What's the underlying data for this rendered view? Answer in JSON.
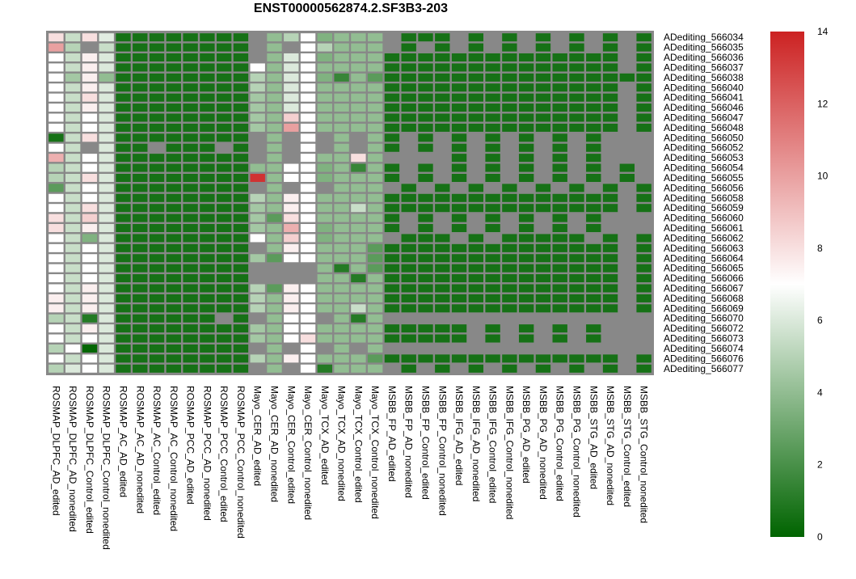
{
  "chart_data": {
    "type": "heatmap",
    "title": "ENST00000562874.2.SF3B3-203",
    "rows": [
      "ADediting_566034",
      "ADediting_566035",
      "ADediting_566036",
      "ADediting_566037",
      "ADediting_566038",
      "ADediting_566040",
      "ADediting_566041",
      "ADediting_566046",
      "ADediting_566047",
      "ADediting_566048",
      "ADediting_566050",
      "ADediting_566052",
      "ADediting_566053",
      "ADediting_566054",
      "ADediting_566055",
      "ADediting_566056",
      "ADediting_566058",
      "ADediting_566059",
      "ADediting_566060",
      "ADediting_566061",
      "ADediting_566062",
      "ADediting_566063",
      "ADediting_566064",
      "ADediting_566065",
      "ADediting_566066",
      "ADediting_566067",
      "ADediting_566068",
      "ADediting_566069",
      "ADediting_566070",
      "ADediting_566072",
      "ADediting_566073",
      "ADediting_566074",
      "ADediting_566076",
      "ADediting_566077"
    ],
    "columns": [
      "ROSMAP_DLPFC_AD_edited",
      "ROSMAP_DLPFC_AD_nonedited",
      "ROSMAP_DLPFC_Control_edited",
      "ROSMAP_DLPFC_Control_nonedited",
      "ROSMAP_AC_AD_edited",
      "ROSMAP_AC_AD_nonedited",
      "ROSMAP_AC_Control_edited",
      "ROSMAP_AC_Control_nonedited",
      "ROSMAP_PCC_AD_edited",
      "ROSMAP_PCC_AD_nonedited",
      "ROSMAP_PCC_Control_edited",
      "ROSMAP_PCC_Control_nonedited",
      "Mayo_CER_AD_edited",
      "Mayo_CER_AD_nonedited",
      "Mayo_CER_Control_edited",
      "Mayo_CER_Control_nonedited",
      "Mayo_TCX_AD_edited",
      "Mayo_TCX_AD_nonedited",
      "Mayo_TCX_Control_edited",
      "Mayo_TCX_Control_nonedited",
      "MSBB_FP_AD_edited",
      "MSBB_FP_AD_nonedited",
      "MSBB_FP_Control_edited",
      "MSBB_FP_Control_nonedited",
      "MSBB_IFG_AD_edited",
      "MSBB_IFG_AD_nonedited",
      "MSBB_IFG_Control_edited",
      "MSBB_IFG_Control_nonedited",
      "MSBB_PG_AD_edited",
      "MSBB_PG_AD_nonedited",
      "MSBB_PG_Control_edited",
      "MSBB_PG_Control_nonedited",
      "MSBB_STG_AD_edited",
      "MSBB_STG_AD_nonedited",
      "MSBB_STG_Control_edited",
      "MSBB_STG_Control_nonedited"
    ],
    "values": [
      [
        8.0,
        5.5,
        8.0,
        6.2,
        0.6,
        0.6,
        0.6,
        0.6,
        0.6,
        0.6,
        0.6,
        0.6,
        null,
        4.0,
        5.0,
        7.0,
        3.5,
        4.0,
        4.0,
        4.0,
        null,
        0.6,
        0.6,
        0.6,
        null,
        0.6,
        null,
        0.6,
        null,
        0.6,
        null,
        0.6,
        null,
        0.6,
        null,
        0.6
      ],
      [
        10.0,
        5.0,
        null,
        5.5,
        0.6,
        0.6,
        0.6,
        0.6,
        0.6,
        0.6,
        0.6,
        0.6,
        null,
        4.0,
        null,
        7.0,
        5.0,
        4.0,
        4.0,
        4.0,
        null,
        0.6,
        null,
        0.6,
        null,
        0.6,
        null,
        0.6,
        null,
        0.6,
        null,
        0.6,
        null,
        0.6,
        null,
        0.6
      ],
      [
        7.0,
        5.5,
        7.5,
        6.0,
        0.6,
        0.6,
        0.6,
        0.6,
        0.6,
        0.6,
        0.6,
        0.6,
        null,
        4.0,
        6.0,
        7.0,
        3.5,
        4.0,
        4.0,
        4.0,
        0.6,
        0.6,
        0.6,
        0.6,
        0.6,
        0.6,
        0.6,
        0.6,
        0.6,
        0.6,
        0.6,
        0.6,
        0.6,
        0.6,
        null,
        0.6
      ],
      [
        7.0,
        5.5,
        7.5,
        6.0,
        0.6,
        0.6,
        0.6,
        0.6,
        0.6,
        0.6,
        0.6,
        0.6,
        7.0,
        4.0,
        6.0,
        7.0,
        4.0,
        4.0,
        4.0,
        4.0,
        0.6,
        0.6,
        0.6,
        0.6,
        0.6,
        0.6,
        0.6,
        0.6,
        0.6,
        0.6,
        0.6,
        0.6,
        0.6,
        0.6,
        null,
        0.6
      ],
      [
        7.0,
        4.5,
        7.5,
        4.0,
        0.6,
        0.6,
        0.6,
        0.6,
        0.6,
        0.6,
        0.6,
        0.6,
        5.0,
        4.0,
        6.0,
        7.0,
        3.5,
        1.5,
        4.0,
        2.5,
        0.6,
        0.6,
        0.6,
        0.6,
        0.6,
        0.6,
        0.6,
        0.6,
        0.6,
        0.6,
        0.6,
        0.6,
        0.6,
        0.6,
        0.6,
        0.6
      ],
      [
        7.0,
        5.5,
        7.5,
        6.0,
        0.6,
        0.6,
        0.6,
        0.6,
        0.6,
        0.6,
        0.6,
        0.6,
        5.0,
        4.0,
        6.0,
        7.0,
        4.0,
        4.0,
        4.0,
        4.0,
        0.6,
        0.6,
        0.6,
        0.6,
        0.6,
        0.6,
        0.6,
        0.6,
        0.6,
        0.6,
        0.6,
        0.6,
        0.6,
        0.6,
        null,
        0.6
      ],
      [
        7.0,
        5.5,
        8.0,
        6.0,
        0.6,
        0.6,
        0.6,
        0.6,
        0.6,
        0.6,
        0.6,
        0.6,
        4.5,
        4.0,
        6.0,
        7.0,
        4.0,
        4.0,
        4.0,
        4.0,
        0.6,
        0.6,
        0.6,
        0.6,
        0.6,
        0.6,
        0.6,
        0.6,
        0.6,
        0.6,
        0.6,
        0.6,
        0.6,
        0.6,
        null,
        0.6
      ],
      [
        7.0,
        5.5,
        7.5,
        6.0,
        0.6,
        0.6,
        0.6,
        0.6,
        0.6,
        0.6,
        0.6,
        0.6,
        4.5,
        4.0,
        6.0,
        7.0,
        4.0,
        4.0,
        4.0,
        4.0,
        0.6,
        0.6,
        0.6,
        0.6,
        0.6,
        0.6,
        0.6,
        0.6,
        0.6,
        0.6,
        0.6,
        0.6,
        0.6,
        0.6,
        null,
        0.6
      ],
      [
        7.0,
        5.5,
        7.0,
        6.0,
        0.6,
        0.6,
        0.6,
        0.6,
        0.6,
        0.6,
        0.6,
        0.6,
        4.5,
        4.0,
        8.5,
        7.0,
        4.0,
        4.0,
        4.0,
        4.0,
        0.6,
        0.6,
        0.6,
        0.6,
        0.6,
        0.6,
        0.6,
        0.6,
        0.6,
        0.6,
        0.6,
        0.6,
        0.6,
        0.6,
        null,
        0.6
      ],
      [
        7.0,
        5.5,
        7.0,
        6.0,
        0.6,
        0.6,
        0.6,
        0.6,
        0.6,
        0.6,
        0.6,
        0.6,
        4.5,
        4.0,
        10.0,
        7.0,
        4.0,
        4.0,
        4.0,
        4.0,
        0.6,
        0.6,
        0.6,
        0.6,
        0.6,
        0.6,
        0.6,
        0.6,
        0.6,
        0.6,
        0.6,
        0.6,
        0.6,
        0.6,
        null,
        0.6
      ],
      [
        0.6,
        5.5,
        8.0,
        6.0,
        0.6,
        0.6,
        0.6,
        0.6,
        0.6,
        0.6,
        0.6,
        0.6,
        null,
        4.0,
        null,
        7.0,
        null,
        4.0,
        null,
        4.0,
        0.6,
        null,
        0.6,
        null,
        0.6,
        null,
        0.6,
        null,
        0.6,
        null,
        0.6,
        null,
        0.6,
        null,
        null,
        null
      ],
      [
        7.0,
        5.5,
        null,
        6.0,
        0.6,
        0.6,
        null,
        0.6,
        0.6,
        0.6,
        null,
        0.6,
        null,
        4.0,
        null,
        7.0,
        null,
        4.0,
        null,
        4.0,
        0.6,
        null,
        0.6,
        null,
        0.6,
        null,
        0.6,
        null,
        0.6,
        null,
        0.6,
        null,
        0.6,
        null,
        null,
        null
      ],
      [
        9.5,
        5.5,
        7.0,
        6.0,
        0.6,
        0.6,
        0.6,
        0.6,
        0.6,
        0.6,
        0.6,
        0.6,
        null,
        4.0,
        null,
        7.0,
        4.0,
        4.0,
        8.0,
        4.0,
        null,
        null,
        null,
        null,
        0.6,
        null,
        0.6,
        null,
        0.6,
        null,
        0.6,
        null,
        0.6,
        null,
        null,
        null
      ],
      [
        5.0,
        5.5,
        7.0,
        6.0,
        0.6,
        0.6,
        0.6,
        0.6,
        0.6,
        0.6,
        0.6,
        0.6,
        4.0,
        4.0,
        7.0,
        7.0,
        3.5,
        4.0,
        1.5,
        4.0,
        0.6,
        null,
        0.6,
        null,
        0.6,
        null,
        0.6,
        null,
        0.6,
        null,
        0.6,
        null,
        0.6,
        null,
        0.6,
        null
      ],
      [
        5.0,
        5.5,
        8.0,
        6.0,
        0.6,
        0.6,
        0.6,
        0.6,
        0.6,
        0.6,
        0.6,
        0.6,
        13.5,
        4.0,
        7.0,
        7.0,
        3.5,
        4.0,
        4.0,
        4.0,
        0.6,
        null,
        0.6,
        null,
        0.6,
        null,
        0.6,
        null,
        0.6,
        null,
        0.6,
        null,
        0.6,
        null,
        0.6,
        null
      ],
      [
        2.5,
        5.5,
        7.0,
        6.0,
        0.6,
        0.6,
        0.6,
        0.6,
        0.6,
        0.6,
        0.6,
        0.6,
        null,
        4.0,
        null,
        7.0,
        null,
        4.0,
        4.0,
        4.0,
        null,
        0.6,
        null,
        0.6,
        null,
        0.6,
        null,
        0.6,
        null,
        0.6,
        null,
        0.6,
        null,
        0.6,
        null,
        0.6
      ],
      [
        7.0,
        5.5,
        7.0,
        6.0,
        0.6,
        0.6,
        0.6,
        0.6,
        0.6,
        0.6,
        0.6,
        0.6,
        5.0,
        4.0,
        7.5,
        7.0,
        4.0,
        4.0,
        4.0,
        4.0,
        0.6,
        0.6,
        0.6,
        0.6,
        0.6,
        0.6,
        0.6,
        0.6,
        0.6,
        0.6,
        0.6,
        0.6,
        0.6,
        0.6,
        null,
        0.6
      ],
      [
        7.0,
        5.5,
        8.0,
        6.0,
        0.6,
        0.6,
        0.6,
        0.6,
        0.6,
        0.6,
        0.6,
        0.6,
        4.5,
        4.0,
        7.5,
        7.0,
        4.0,
        4.0,
        5.5,
        4.0,
        0.6,
        0.6,
        0.6,
        0.6,
        0.6,
        0.6,
        0.6,
        0.6,
        0.6,
        0.6,
        0.6,
        0.6,
        0.6,
        0.6,
        null,
        0.6
      ],
      [
        8.0,
        5.5,
        8.5,
        6.0,
        0.6,
        0.6,
        0.6,
        0.6,
        0.6,
        0.6,
        0.6,
        0.6,
        4.5,
        2.5,
        8.0,
        7.0,
        4.0,
        4.0,
        4.0,
        4.0,
        0.6,
        null,
        0.6,
        null,
        0.6,
        null,
        0.6,
        null,
        0.6,
        null,
        0.6,
        null,
        0.6,
        null,
        null,
        null
      ],
      [
        8.0,
        5.5,
        7.5,
        6.0,
        0.6,
        0.6,
        0.6,
        0.6,
        0.6,
        0.6,
        0.6,
        0.6,
        4.5,
        4.0,
        9.5,
        7.0,
        3.5,
        4.0,
        4.0,
        4.0,
        0.6,
        null,
        0.6,
        null,
        0.6,
        null,
        0.6,
        null,
        0.6,
        null,
        0.6,
        null,
        0.6,
        null,
        null,
        null
      ],
      [
        7.0,
        5.5,
        3.5,
        6.0,
        0.6,
        0.6,
        0.6,
        0.6,
        0.6,
        0.6,
        0.6,
        0.6,
        7.0,
        4.0,
        8.5,
        7.0,
        3.5,
        4.0,
        4.0,
        4.0,
        null,
        0.6,
        0.6,
        0.6,
        null,
        0.6,
        null,
        0.6,
        0.6,
        0.6,
        0.6,
        0.6,
        null,
        0.6,
        null,
        0.6
      ],
      [
        7.0,
        5.5,
        7.0,
        6.0,
        0.6,
        0.6,
        0.6,
        0.6,
        0.6,
        0.6,
        0.6,
        0.6,
        null,
        4.0,
        7.5,
        7.0,
        4.0,
        4.0,
        4.0,
        2.5,
        0.6,
        0.6,
        0.6,
        0.6,
        0.6,
        0.6,
        0.6,
        0.6,
        0.6,
        0.6,
        0.6,
        0.6,
        0.6,
        0.6,
        null,
        0.6
      ],
      [
        7.0,
        5.5,
        7.0,
        6.0,
        0.6,
        0.6,
        0.6,
        0.6,
        0.6,
        0.6,
        0.6,
        0.6,
        4.5,
        2.5,
        7.0,
        7.0,
        4.0,
        4.0,
        4.0,
        2.5,
        0.6,
        0.6,
        0.6,
        0.6,
        0.6,
        0.6,
        0.6,
        0.6,
        0.6,
        0.6,
        0.6,
        0.6,
        0.6,
        0.6,
        null,
        0.6
      ],
      [
        7.0,
        5.5,
        7.0,
        6.0,
        0.6,
        0.6,
        0.6,
        0.6,
        0.6,
        0.6,
        0.6,
        0.6,
        null,
        null,
        null,
        null,
        4.0,
        1.0,
        4.0,
        2.5,
        0.6,
        0.6,
        0.6,
        0.6,
        0.6,
        0.6,
        0.6,
        0.6,
        0.6,
        0.6,
        0.6,
        0.6,
        0.6,
        0.6,
        null,
        0.6
      ],
      [
        7.0,
        5.5,
        7.0,
        6.0,
        0.6,
        0.6,
        0.6,
        0.6,
        0.6,
        0.6,
        0.6,
        0.6,
        null,
        null,
        null,
        null,
        4.0,
        4.0,
        1.0,
        4.0,
        0.6,
        0.6,
        0.6,
        0.6,
        0.6,
        0.6,
        0.6,
        0.6,
        0.6,
        0.6,
        0.6,
        0.6,
        0.6,
        0.6,
        null,
        0.6
      ],
      [
        7.0,
        5.5,
        7.5,
        6.0,
        0.6,
        0.6,
        0.6,
        0.6,
        0.6,
        0.6,
        0.6,
        0.6,
        5.0,
        2.5,
        7.5,
        7.0,
        4.0,
        4.0,
        4.0,
        4.0,
        0.6,
        0.6,
        0.6,
        0.6,
        0.6,
        0.6,
        0.6,
        0.6,
        0.6,
        0.6,
        0.6,
        0.6,
        0.6,
        0.6,
        null,
        0.6
      ],
      [
        7.5,
        5.5,
        7.5,
        6.0,
        0.6,
        0.6,
        0.6,
        0.6,
        0.6,
        0.6,
        0.6,
        0.6,
        5.0,
        4.0,
        7.5,
        7.0,
        4.0,
        4.0,
        4.0,
        4.0,
        0.6,
        0.6,
        0.6,
        0.6,
        0.6,
        0.6,
        0.6,
        0.6,
        0.6,
        0.6,
        0.6,
        0.6,
        0.6,
        0.6,
        null,
        0.6
      ],
      [
        7.5,
        5.5,
        7.5,
        6.0,
        0.6,
        0.6,
        0.6,
        0.6,
        0.6,
        0.6,
        0.6,
        0.6,
        5.0,
        4.0,
        7.5,
        7.0,
        4.0,
        4.0,
        5.5,
        4.0,
        0.6,
        0.6,
        0.6,
        0.6,
        0.6,
        0.6,
        0.6,
        0.6,
        0.6,
        0.6,
        0.6,
        0.6,
        0.6,
        0.6,
        null,
        0.6
      ],
      [
        5.0,
        5.5,
        1.0,
        6.0,
        0.6,
        0.6,
        0.6,
        0.6,
        0.6,
        0.6,
        null,
        0.6,
        null,
        4.0,
        7.0,
        7.0,
        null,
        4.0,
        1.0,
        4.0,
        null,
        null,
        null,
        null,
        null,
        null,
        null,
        null,
        null,
        null,
        null,
        null,
        null,
        null,
        null,
        null
      ],
      [
        7.0,
        5.5,
        7.5,
        6.0,
        0.6,
        0.6,
        0.6,
        0.6,
        0.6,
        0.6,
        0.6,
        0.6,
        4.5,
        4.0,
        7.0,
        7.0,
        4.0,
        4.0,
        4.0,
        4.0,
        0.6,
        0.6,
        0.6,
        0.6,
        0.6,
        null,
        0.6,
        null,
        0.6,
        null,
        0.6,
        null,
        0.6,
        null,
        null,
        null
      ],
      [
        7.0,
        5.5,
        7.0,
        6.0,
        0.6,
        0.6,
        0.6,
        0.6,
        0.6,
        0.6,
        0.6,
        0.6,
        4.5,
        4.0,
        7.0,
        8.0,
        4.0,
        4.0,
        4.0,
        4.0,
        0.6,
        0.6,
        0.6,
        0.6,
        0.6,
        null,
        0.6,
        null,
        0.6,
        null,
        0.6,
        null,
        0.6,
        null,
        null,
        null
      ],
      [
        5.0,
        7.0,
        0.1,
        6.0,
        0.6,
        0.6,
        0.6,
        0.6,
        0.6,
        0.6,
        0.6,
        0.6,
        null,
        4.0,
        null,
        7.0,
        null,
        4.0,
        null,
        4.0,
        null,
        null,
        null,
        null,
        null,
        null,
        null,
        null,
        null,
        null,
        null,
        null,
        null,
        null,
        null,
        null
      ],
      [
        7.0,
        5.5,
        7.0,
        6.0,
        0.6,
        0.6,
        0.6,
        0.6,
        0.6,
        0.6,
        0.6,
        0.6,
        5.0,
        4.0,
        7.5,
        7.0,
        4.0,
        4.0,
        4.0,
        2.5,
        0.6,
        0.6,
        0.6,
        0.6,
        0.6,
        0.6,
        0.6,
        0.6,
        0.6,
        0.6,
        0.6,
        0.6,
        0.6,
        0.6,
        null,
        0.6
      ],
      [
        5.0,
        6.0,
        7.0,
        6.0,
        0.6,
        0.6,
        0.6,
        0.6,
        0.6,
        0.6,
        0.6,
        0.6,
        null,
        4.0,
        null,
        7.0,
        1.0,
        4.0,
        4.0,
        4.0,
        null,
        0.6,
        null,
        0.6,
        null,
        0.6,
        null,
        0.6,
        null,
        0.6,
        null,
        0.6,
        null,
        0.6,
        null,
        0.6
      ]
    ],
    "missing_color": "#888888",
    "color_scale": {
      "min": 0,
      "mid": 7,
      "max": 14,
      "low": "#006400",
      "midColor": "#ffffff",
      "high": "#cc2222"
    },
    "legend_ticks": [
      0,
      2,
      4,
      6,
      8,
      10,
      12,
      14
    ],
    "legend_placement": "right"
  }
}
